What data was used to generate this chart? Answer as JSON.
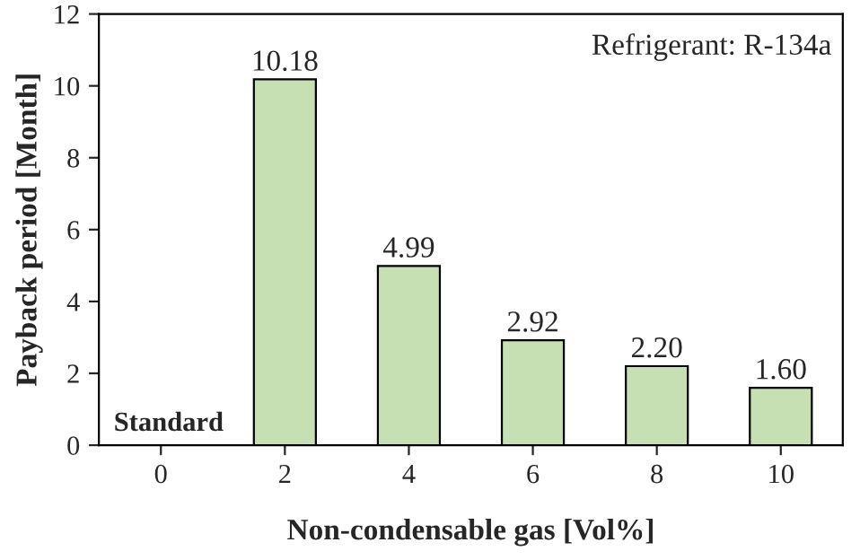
{
  "chart_data": {
    "type": "bar",
    "xlabel": "Non-condensable gas [Vol%]",
    "ylabel": "Payback period [Month]",
    "categories": [
      "0",
      "2",
      "4",
      "6",
      "8",
      "10"
    ],
    "values": [
      null,
      10.18,
      4.99,
      2.92,
      2.2,
      1.6
    ],
    "value_labels": [
      null,
      "10.18",
      "4.99",
      "2.92",
      "2.20",
      "1.60"
    ],
    "color": "#c6e0b4",
    "ylim": [
      0,
      12
    ],
    "yticks": [
      0,
      2,
      4,
      6,
      8,
      10,
      12
    ],
    "grid": false,
    "annotations": [
      "Standard",
      "Refrigerant: R-134a"
    ]
  }
}
